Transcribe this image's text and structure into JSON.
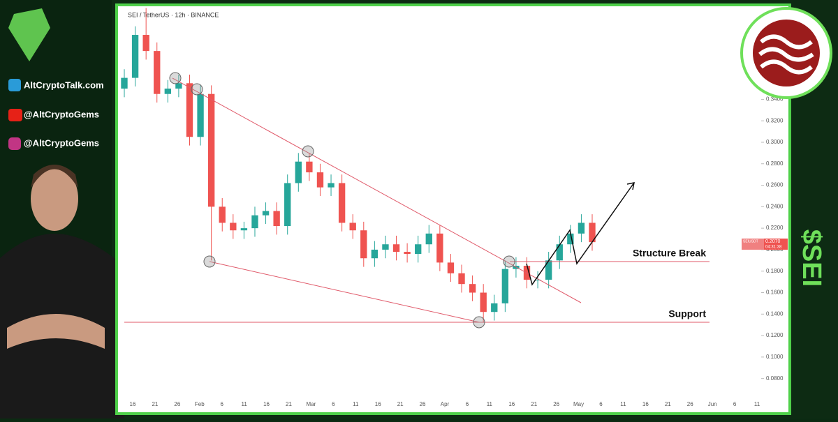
{
  "header": {
    "symbol": "SEI / TetherUS · 12h · BINANCE"
  },
  "sidebar": {
    "website": "AltCryptoTalk.com",
    "youtube": "@AltCryptoGems",
    "instagram": "@AltCryptoGems"
  },
  "ticker": "$SEI",
  "annotations": {
    "structure_break": "Structure Break",
    "support": "Support"
  },
  "price_badge": {
    "symbol": "SEIUSDT",
    "price": "0.2070",
    "countdown": "04:31:38"
  },
  "chart_data": {
    "type": "candlestick",
    "up_color": "#26a69a",
    "down_color": "#ef5350",
    "x_labels": [
      "16",
      "21",
      "26",
      "Feb",
      "6",
      "11",
      "16",
      "21",
      "Mar",
      "6",
      "11",
      "16",
      "21",
      "26",
      "Apr",
      "6",
      "11",
      "16",
      "21",
      "26",
      "May",
      "6",
      "11",
      "16",
      "21",
      "26",
      "Jun",
      "6",
      "11"
    ],
    "open": [
      0.35,
      0.36,
      0.4,
      0.385,
      0.345,
      0.35,
      0.355,
      0.305,
      0.345,
      0.24,
      0.225,
      0.218,
      0.22,
      0.232,
      0.236,
      0.222,
      0.262,
      0.282,
      0.272,
      0.258,
      0.262,
      0.225,
      0.218,
      0.192,
      0.2,
      0.205,
      0.198,
      0.196,
      0.205,
      0.215,
      0.188,
      0.178,
      0.168,
      0.16,
      0.142,
      0.15,
      0.182,
      0.185,
      0.172,
      0.172,
      0.19,
      0.205,
      0.215,
      0.225
    ],
    "high": [
      0.368,
      0.408,
      0.425,
      0.393,
      0.358,
      0.363,
      0.363,
      0.353,
      0.353,
      0.248,
      0.233,
      0.226,
      0.24,
      0.244,
      0.244,
      0.27,
      0.29,
      0.29,
      0.28,
      0.27,
      0.27,
      0.233,
      0.226,
      0.208,
      0.213,
      0.213,
      0.206,
      0.213,
      0.223,
      0.223,
      0.196,
      0.186,
      0.176,
      0.168,
      0.158,
      0.19,
      0.193,
      0.193,
      0.18,
      0.198,
      0.213,
      0.223,
      0.233,
      0.233
    ],
    "low": [
      0.342,
      0.352,
      0.377,
      0.337,
      0.337,
      0.342,
      0.297,
      0.297,
      0.19,
      0.217,
      0.21,
      0.21,
      0.212,
      0.224,
      0.214,
      0.214,
      0.254,
      0.264,
      0.25,
      0.25,
      0.217,
      0.21,
      0.184,
      0.184,
      0.192,
      0.19,
      0.188,
      0.188,
      0.197,
      0.18,
      0.17,
      0.16,
      0.152,
      0.132,
      0.134,
      0.142,
      0.174,
      0.164,
      0.164,
      0.164,
      0.182,
      0.197,
      0.207,
      0.199
    ],
    "close": [
      0.36,
      0.4,
      0.385,
      0.345,
      0.35,
      0.355,
      0.305,
      0.345,
      0.24,
      0.225,
      0.218,
      0.22,
      0.232,
      0.236,
      0.222,
      0.262,
      0.282,
      0.272,
      0.258,
      0.262,
      0.225,
      0.218,
      0.192,
      0.2,
      0.205,
      0.198,
      0.196,
      0.205,
      0.215,
      0.188,
      0.178,
      0.168,
      0.16,
      0.142,
      0.15,
      0.182,
      0.185,
      0.172,
      0.172,
      0.19,
      0.205,
      0.215,
      0.225,
      0.207
    ],
    "ylim": [
      0.059,
      0.426
    ],
    "yticks": [
      {
        "value": 0.08,
        "label": "0.0800"
      },
      {
        "value": 0.1,
        "label": "0.1000"
      },
      {
        "value": 0.12,
        "label": "0.1200"
      },
      {
        "value": 0.14,
        "label": "0.1400"
      },
      {
        "value": 0.16,
        "label": "0.1600"
      },
      {
        "value": 0.18,
        "label": "0.1800"
      },
      {
        "value": 0.2,
        "label": "0.2000"
      },
      {
        "value": 0.22,
        "label": "0.2200"
      },
      {
        "value": 0.24,
        "label": "0.2400"
      },
      {
        "value": 0.26,
        "label": "0.2600"
      },
      {
        "value": 0.28,
        "label": "0.2800"
      },
      {
        "value": 0.3,
        "label": "0.3000"
      },
      {
        "value": 0.32,
        "label": "0.3200"
      },
      {
        "value": 0.34,
        "label": "0.3400"
      }
    ]
  }
}
